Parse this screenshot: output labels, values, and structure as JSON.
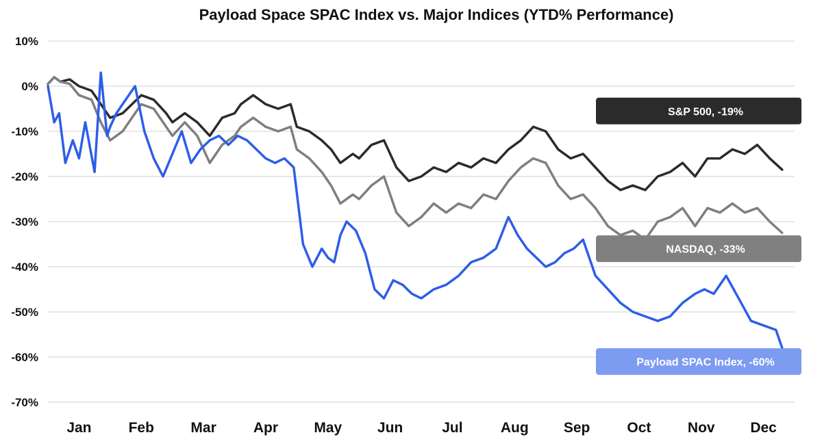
{
  "chart_data": {
    "type": "line",
    "title": "Payload Space SPAC Index vs. Major Indices (YTD% Performance)",
    "xlabel": "",
    "ylabel": "",
    "ylim": [
      -70,
      10
    ],
    "yticks": [
      10,
      0,
      -10,
      -20,
      -30,
      -40,
      -50,
      -60,
      -70
    ],
    "ytick_labels": [
      "10%",
      "0%",
      "-10%",
      "-20%",
      "-30%",
      "-40%",
      "-50%",
      "-60%",
      "-70%"
    ],
    "xlim": [
      0,
      12
    ],
    "categories": [
      "Jan",
      "Feb",
      "Mar",
      "Apr",
      "May",
      "Jun",
      "Jul",
      "Aug",
      "Sep",
      "Oct",
      "Nov",
      "Dec"
    ],
    "grid": true,
    "series": [
      {
        "name": "S&P 500",
        "label": "S&P 500, -19%",
        "color": "#2b2b2b",
        "label_color": "#2b2b2b",
        "label_y": -5.5,
        "x": [
          0,
          0.1,
          0.2,
          0.35,
          0.5,
          0.7,
          0.85,
          1.0,
          1.2,
          1.5,
          1.7,
          1.9,
          2.0,
          2.2,
          2.4,
          2.6,
          2.8,
          3.0,
          3.1,
          3.3,
          3.5,
          3.7,
          3.9,
          4.0,
          4.2,
          4.4,
          4.55,
          4.7,
          4.9,
          5.0,
          5.2,
          5.4,
          5.6,
          5.8,
          6.0,
          6.2,
          6.4,
          6.6,
          6.8,
          7.0,
          7.2,
          7.4,
          7.6,
          7.8,
          8.0,
          8.2,
          8.4,
          8.6,
          8.8,
          9.0,
          9.2,
          9.4,
          9.6,
          9.8,
          10.0,
          10.2,
          10.4,
          10.6,
          10.8,
          11.0,
          11.2,
          11.4,
          11.6,
          11.8
        ],
        "values": [
          0.5,
          2,
          1,
          1.5,
          0,
          -1,
          -4,
          -7,
          -6,
          -2,
          -3,
          -6,
          -8,
          -6,
          -8,
          -11,
          -7,
          -6,
          -4,
          -2,
          -4,
          -5,
          -4,
          -9,
          -10,
          -12,
          -14,
          -17,
          -15,
          -16,
          -13,
          -12,
          -18,
          -21,
          -20,
          -18,
          -19,
          -17,
          -18,
          -16,
          -17,
          -14,
          -12,
          -9,
          -10,
          -14,
          -16,
          -15,
          -18,
          -21,
          -23,
          -22,
          -23,
          -20,
          -19,
          -17,
          -20,
          -16,
          -16,
          -14,
          -15,
          -13,
          -16,
          -18.5
        ]
      },
      {
        "name": "NASDAQ",
        "label": "NASDAQ, -33%",
        "color": "#7f7f7f",
        "label_color": "#808080",
        "label_y": -36,
        "x": [
          0,
          0.1,
          0.2,
          0.35,
          0.5,
          0.7,
          0.85,
          1.0,
          1.2,
          1.5,
          1.7,
          1.9,
          2.0,
          2.2,
          2.4,
          2.6,
          2.8,
          3.0,
          3.1,
          3.3,
          3.5,
          3.7,
          3.9,
          4.0,
          4.2,
          4.4,
          4.55,
          4.7,
          4.9,
          5.0,
          5.2,
          5.4,
          5.6,
          5.8,
          6.0,
          6.2,
          6.4,
          6.6,
          6.8,
          7.0,
          7.2,
          7.4,
          7.6,
          7.8,
          8.0,
          8.2,
          8.4,
          8.6,
          8.8,
          9.0,
          9.2,
          9.4,
          9.6,
          9.8,
          10.0,
          10.2,
          10.4,
          10.6,
          10.8,
          11.0,
          11.2,
          11.4,
          11.6,
          11.8
        ],
        "values": [
          0.5,
          2,
          1,
          0.5,
          -2,
          -3,
          -8,
          -12,
          -10,
          -4,
          -5,
          -9,
          -11,
          -8,
          -11,
          -17,
          -13,
          -11,
          -9,
          -7,
          -9,
          -10,
          -9,
          -14,
          -16,
          -19,
          -22,
          -26,
          -24,
          -25,
          -22,
          -20,
          -28,
          -31,
          -29,
          -26,
          -28,
          -26,
          -27,
          -24,
          -25,
          -21,
          -18,
          -16,
          -17,
          -22,
          -25,
          -24,
          -27,
          -31,
          -33,
          -32,
          -34,
          -30,
          -29,
          -27,
          -31,
          -27,
          -28,
          -26,
          -28,
          -27,
          -30,
          -32.5
        ]
      },
      {
        "name": "Payload SPAC Index",
        "label": "Payload SPAC Index, -60%",
        "color": "#2d5ee8",
        "label_color": "#7d9bf0",
        "label_y": -61,
        "x": [
          0,
          0.1,
          0.18,
          0.28,
          0.4,
          0.5,
          0.6,
          0.75,
          0.85,
          0.95,
          1.0,
          1.1,
          1.25,
          1.4,
          1.55,
          1.7,
          1.85,
          2.0,
          2.15,
          2.3,
          2.45,
          2.6,
          2.75,
          2.9,
          3.05,
          3.2,
          3.35,
          3.5,
          3.65,
          3.8,
          3.95,
          4.1,
          4.25,
          4.4,
          4.5,
          4.6,
          4.7,
          4.8,
          4.95,
          5.1,
          5.25,
          5.4,
          5.55,
          5.7,
          5.85,
          6.0,
          6.2,
          6.4,
          6.6,
          6.8,
          7.0,
          7.2,
          7.4,
          7.55,
          7.7,
          7.85,
          8.0,
          8.15,
          8.3,
          8.45,
          8.6,
          8.8,
          9.0,
          9.2,
          9.4,
          9.6,
          9.8,
          10.0,
          10.2,
          10.4,
          10.55,
          10.7,
          10.9,
          11.1,
          11.3,
          11.5,
          11.7,
          11.85
        ],
        "values": [
          0,
          -8,
          -6,
          -17,
          -12,
          -16,
          -8,
          -19,
          3,
          -11,
          -9,
          -6,
          -3,
          0,
          -10,
          -16,
          -20,
          -15,
          -10,
          -17,
          -14,
          -12,
          -11,
          -13,
          -11,
          -12,
          -14,
          -16,
          -17,
          -16,
          -18,
          -35,
          -40,
          -36,
          -38,
          -39,
          -33,
          -30,
          -32,
          -37,
          -45,
          -47,
          -43,
          -44,
          -46,
          -47,
          -45,
          -44,
          -42,
          -39,
          -38,
          -36,
          -29,
          -33,
          -36,
          -38,
          -40,
          -39,
          -37,
          -36,
          -34,
          -42,
          -45,
          -48,
          -50,
          -51,
          -52,
          -51,
          -48,
          -46,
          -45,
          -46,
          -42,
          -47,
          -52,
          -53,
          -54,
          -60
        ]
      }
    ]
  }
}
